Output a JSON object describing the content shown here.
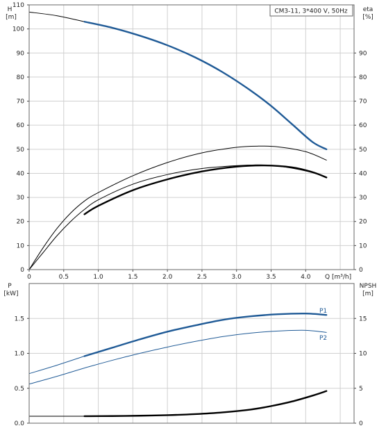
{
  "chart_data": [
    {
      "type": "line",
      "title": "CM3-11, 3*400 V, 50Hz",
      "xlabel": "Q [m³/h]",
      "x_ticks": [
        "0",
        "0.5",
        "1.0",
        "1.5",
        "2.0",
        "2.5",
        "3.0",
        "3.5",
        "4.0"
      ],
      "left_axis": {
        "label_top": "H",
        "label_unit": "[m]",
        "range": [
          0,
          110
        ],
        "ticks": [
          "0",
          "10",
          "20",
          "30",
          "40",
          "50",
          "60",
          "70",
          "80",
          "90",
          "100",
          "110"
        ]
      },
      "right_axis": {
        "label_top": "eta",
        "label_unit": "[%]",
        "range": [
          0,
          110
        ],
        "ticks": [
          "0",
          "10",
          "20",
          "30",
          "40",
          "50",
          "60",
          "70",
          "80",
          "90"
        ]
      },
      "xlim": [
        0,
        4.7
      ],
      "grid": true,
      "series": [
        {
          "axis": "left",
          "style": "thin",
          "points": [
            [
              0,
              107
            ],
            [
              0.4,
              105.5
            ],
            [
              0.8,
              103
            ]
          ]
        },
        {
          "axis": "left",
          "style": "bold",
          "color": "#1f5a96",
          "points": [
            [
              0.8,
              103
            ],
            [
              1.2,
              100.5
            ],
            [
              1.6,
              97.2
            ],
            [
              2.0,
              93.2
            ],
            [
              2.4,
              88.2
            ],
            [
              2.8,
              82
            ],
            [
              3.2,
              74.5
            ],
            [
              3.5,
              68
            ],
            [
              3.8,
              60.5
            ],
            [
              4.1,
              53
            ],
            [
              4.3,
              50
            ]
          ]
        },
        {
          "axis": "right",
          "style": "thin",
          "points": [
            [
              0,
              0
            ],
            [
              0.2,
              7
            ],
            [
              0.4,
              14
            ],
            [
              0.6,
              20
            ],
            [
              0.8,
              25
            ],
            [
              1.0,
              29
            ],
            [
              1.5,
              35.5
            ],
            [
              2.0,
              39.5
            ],
            [
              2.5,
              42
            ],
            [
              3.0,
              43.2
            ],
            [
              3.3,
              43.5
            ],
            [
              3.6,
              43
            ],
            [
              4.0,
              41
            ],
            [
              4.3,
              38.5
            ]
          ]
        },
        {
          "axis": "right",
          "style": "bold",
          "points": [
            [
              0.8,
              23
            ],
            [
              1.0,
              26.5
            ],
            [
              1.5,
              33
            ],
            [
              2.0,
              37.5
            ],
            [
              2.5,
              40.8
            ],
            [
              3.0,
              42.8
            ],
            [
              3.4,
              43.3
            ],
            [
              3.8,
              42.5
            ],
            [
              4.1,
              40.5
            ],
            [
              4.3,
              38.3
            ]
          ]
        },
        {
          "axis": "right",
          "style": "thin",
          "points": [
            [
              0,
              0
            ],
            [
              0.2,
              9
            ],
            [
              0.4,
              17
            ],
            [
              0.6,
              23.5
            ],
            [
              0.8,
              28.5
            ],
            [
              1.0,
              32
            ],
            [
              1.5,
              39
            ],
            [
              2.0,
              44.5
            ],
            [
              2.5,
              48.5
            ],
            [
              3.0,
              50.8
            ],
            [
              3.3,
              51.3
            ],
            [
              3.6,
              51
            ],
            [
              4.0,
              49
            ],
            [
              4.3,
              45.5
            ]
          ]
        }
      ]
    },
    {
      "type": "line",
      "xlabel": "",
      "left_axis": {
        "label_top": "P",
        "label_unit": "[kW]",
        "range": [
          0,
          2.0
        ],
        "ticks": [
          "0.0",
          "0.5",
          "1.0",
          "1.5"
        ]
      },
      "right_axis": {
        "label_top": "NPSH",
        "label_unit": "[m]",
        "range": [
          0,
          20
        ],
        "ticks": [
          "0",
          "5",
          "10",
          "15"
        ]
      },
      "xlim": [
        0,
        4.7
      ],
      "grid": true,
      "series": [
        {
          "name": "P1",
          "axis": "left",
          "style": "thin",
          "color": "#1f5a96",
          "points": [
            [
              0,
              0.71
            ],
            [
              0.4,
              0.83
            ],
            [
              0.8,
              0.96
            ]
          ]
        },
        {
          "name": "P1",
          "axis": "left",
          "style": "bold",
          "color": "#1f5a96",
          "points": [
            [
              0.8,
              0.96
            ],
            [
              1.2,
              1.08
            ],
            [
              1.6,
              1.2
            ],
            [
              2.0,
              1.31
            ],
            [
              2.4,
              1.4
            ],
            [
              2.8,
              1.48
            ],
            [
              3.2,
              1.53
            ],
            [
              3.6,
              1.56
            ],
            [
              4.0,
              1.57
            ],
            [
              4.3,
              1.55
            ]
          ]
        },
        {
          "name": "P2",
          "axis": "left",
          "style": "thin",
          "color": "#1f5a96",
          "points": [
            [
              0,
              0.56
            ],
            [
              0.4,
              0.67
            ],
            [
              0.8,
              0.79
            ],
            [
              1.2,
              0.9
            ],
            [
              1.6,
              1.0
            ],
            [
              2.0,
              1.09
            ],
            [
              2.4,
              1.17
            ],
            [
              2.8,
              1.24
            ],
            [
              3.2,
              1.29
            ],
            [
              3.6,
              1.32
            ],
            [
              4.0,
              1.33
            ],
            [
              4.3,
              1.3
            ]
          ]
        },
        {
          "axis": "right",
          "style": "thin",
          "points": [
            [
              0,
              1.0
            ],
            [
              0.8,
              1.0
            ]
          ]
        },
        {
          "axis": "right",
          "style": "bold",
          "points": [
            [
              0.8,
              1.0
            ],
            [
              1.2,
              1.02
            ],
            [
              1.6,
              1.07
            ],
            [
              2.0,
              1.15
            ],
            [
              2.4,
              1.3
            ],
            [
              2.8,
              1.55
            ],
            [
              3.2,
              1.95
            ],
            [
              3.5,
              2.45
            ],
            [
              3.8,
              3.1
            ],
            [
              4.1,
              3.95
            ],
            [
              4.3,
              4.6
            ]
          ]
        }
      ],
      "labels": [
        "P1",
        "P2"
      ]
    }
  ]
}
